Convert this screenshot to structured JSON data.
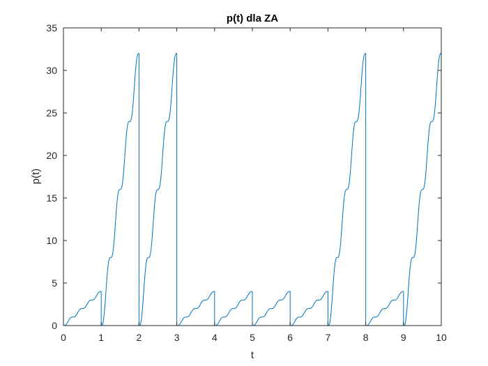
{
  "chart_data": {
    "type": "line",
    "title": "p(t) dla ZA",
    "xlabel": "t",
    "ylabel": "p(t)",
    "xlim": [
      0,
      10
    ],
    "ylim": [
      0,
      35
    ],
    "xticks": [
      "0",
      "1",
      "2",
      "3",
      "4",
      "5",
      "6",
      "7",
      "8",
      "9",
      "10"
    ],
    "yticks": [
      "0",
      "5",
      "10",
      "15",
      "20",
      "25",
      "30",
      "35"
    ],
    "grid": false,
    "box": true,
    "line_color": "#0072BD",
    "segments": [
      {
        "t_start": 0,
        "t_end": 1,
        "peak": 4
      },
      {
        "t_start": 1,
        "t_end": 2,
        "peak": 32
      },
      {
        "t_start": 2,
        "t_end": 3,
        "peak": 32
      },
      {
        "t_start": 3,
        "t_end": 4,
        "peak": 4
      },
      {
        "t_start": 4,
        "t_end": 5,
        "peak": 4
      },
      {
        "t_start": 5,
        "t_end": 6,
        "peak": 4
      },
      {
        "t_start": 6,
        "t_end": 7,
        "peak": 4
      },
      {
        "t_start": 7,
        "t_end": 8,
        "peak": 32
      },
      {
        "t_start": 8,
        "t_end": 9,
        "peak": 4
      },
      {
        "t_start": 9,
        "t_end": 10,
        "peak": 32
      }
    ]
  }
}
